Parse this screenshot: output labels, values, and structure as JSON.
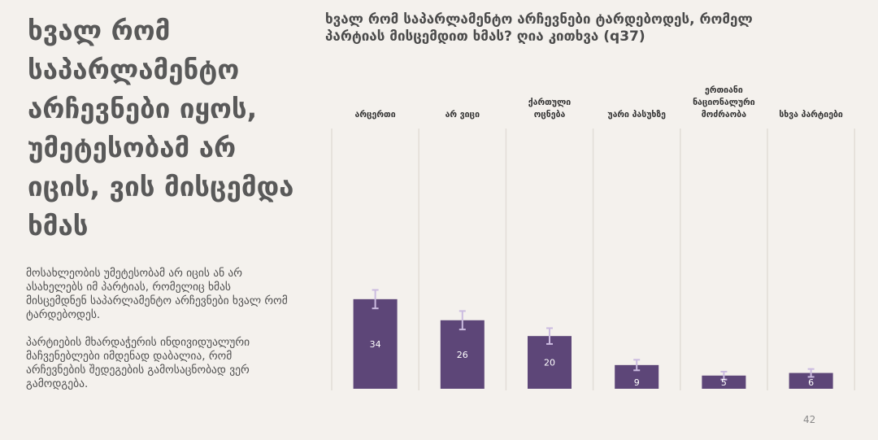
{
  "slide": {
    "title": "ხვალ რომ საპარლამენტო არჩევნები იყოს, უმეტესობამ არ იცის, ვის მისცემდა ხმას",
    "body": [
      "მოსახლეობის უმეტესობამ არ იცის ან არ ასახელებს იმ პარტიას, რომელიც ხმას მისცემდნენ საპარლამენტო არჩევნები ხვალ რომ ტარდებოდეს.",
      "პარტიების მხარდაჭერის ინდივიდუალური მაჩვენებლები იმდენად დაბალია, რომ არჩევნების შედეგების გამოსაცნობად ვერ გამოდგება."
    ],
    "page_number": "42"
  },
  "chart_data": {
    "type": "bar",
    "title": "ხვალ რომ საპარლამენტო არჩევნები ტარდებოდეს, რომელ პარტიას მისცემდით ხმას? ღია კითხვა (q37)",
    "categories": [
      [
        "არცერთი"
      ],
      [
        "არ ვიცი"
      ],
      [
        "ქართული",
        "ოცნება"
      ],
      [
        "უარი პასუხზე"
      ],
      [
        "ერთიანი",
        "ნაციონალური",
        "მოძრაობა"
      ],
      [
        "სხვა პარტიები"
      ]
    ],
    "values": [
      34,
      26,
      20,
      9,
      5,
      6
    ],
    "error_margin": [
      3.5,
      3.5,
      3,
      2,
      1.5,
      1.5
    ],
    "ylim": [
      0,
      100
    ],
    "xlabel": "",
    "ylabel": "",
    "grid": "vertical separators",
    "bar_color": "#5d4678",
    "error_bar_color": "#cbbbe0"
  }
}
